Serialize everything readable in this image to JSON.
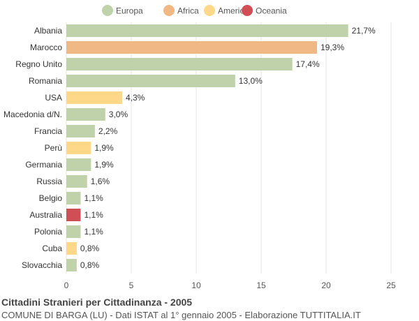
{
  "chart_data": {
    "type": "bar",
    "orientation": "horizontal",
    "title": "Cittadini Stranieri per Cittadinanza - 2005",
    "subtitle": "COMUNE DI BARGA (LU) - Dati ISTAT al 1° gennaio 2005 - Elaborazione TUTTITALIA.IT",
    "legend": {
      "position": "top",
      "items": [
        {
          "name": "Europa",
          "color": "#c0d2aa"
        },
        {
          "name": "Africa",
          "color": "#f0b884"
        },
        {
          "name": "America",
          "color": "#fdd888"
        },
        {
          "name": "Oceania",
          "color": "#d04e56"
        }
      ]
    },
    "categories": [
      "Albania",
      "Marocco",
      "Regno Unito",
      "Romania",
      "USA",
      "Macedonia d/N.",
      "Francia",
      "Perù",
      "Germania",
      "Russia",
      "Belgio",
      "Australia",
      "Polonia",
      "Cuba",
      "Slovacchia"
    ],
    "values": [
      21.7,
      19.3,
      17.4,
      13.0,
      4.3,
      3.0,
      2.2,
      1.9,
      1.9,
      1.6,
      1.1,
      1.1,
      1.1,
      0.8,
      0.8
    ],
    "value_labels": [
      "21,7%",
      "19,3%",
      "17,4%",
      "13,0%",
      "4,3%",
      "3,0%",
      "2,2%",
      "1,9%",
      "1,9%",
      "1,6%",
      "1,1%",
      "1,1%",
      "1,1%",
      "0,8%",
      "0,8%"
    ],
    "groups": [
      "Europa",
      "Africa",
      "Europa",
      "Europa",
      "America",
      "Europa",
      "Europa",
      "America",
      "Europa",
      "Europa",
      "Europa",
      "Oceania",
      "Europa",
      "America",
      "Europa"
    ],
    "xlim": [
      0,
      25
    ],
    "xticks": [
      0,
      5,
      10,
      15,
      20,
      25
    ],
    "grid": true
  }
}
